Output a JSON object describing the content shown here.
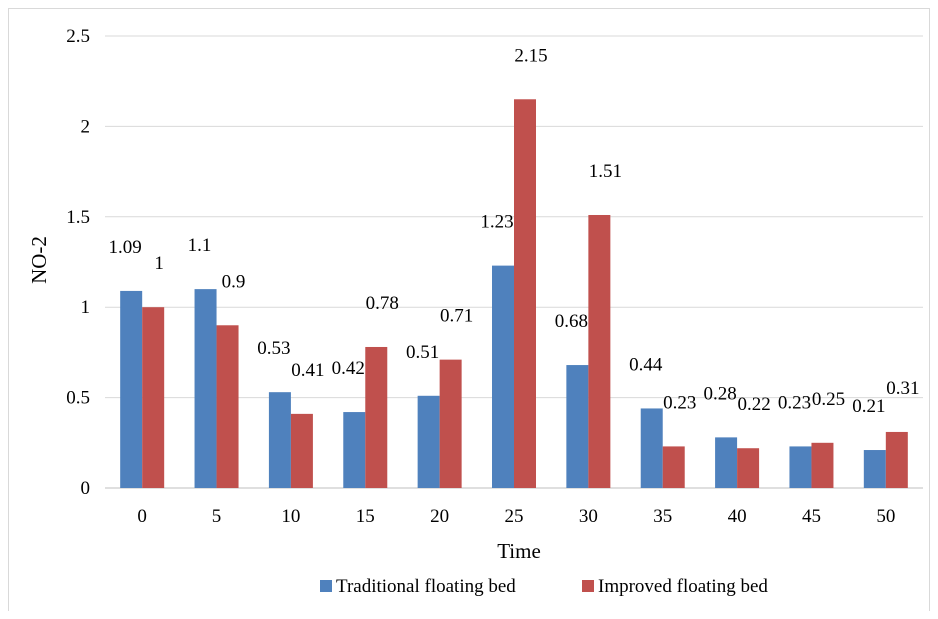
{
  "chart_data": {
    "type": "bar",
    "title": "",
    "xlabel": "Time",
    "ylabel": "NO-2",
    "ylim": [
      0,
      2.5
    ],
    "yticks": [
      "0",
      "0.5",
      "1",
      "1.5",
      "2",
      "2.5"
    ],
    "categories": [
      "0",
      "5",
      "10",
      "15",
      "20",
      "25",
      "30",
      "35",
      "40",
      "45",
      "50"
    ],
    "series": [
      {
        "name": "Traditional floating bed",
        "color": "#4f81bd",
        "values": [
          1.09,
          1.1,
          0.53,
          0.42,
          0.51,
          1.23,
          0.68,
          0.44,
          0.28,
          0.23,
          0.21
        ],
        "labels": [
          "1.09",
          "1.1",
          "0.53",
          "0.42",
          "0.51",
          "1.23",
          "0.68",
          "0.44",
          "0.28",
          "0.23",
          "0.21"
        ]
      },
      {
        "name": "Improved floating bed",
        "color": "#c0504d",
        "values": [
          1,
          0.9,
          0.41,
          0.78,
          0.71,
          2.15,
          1.51,
          0.23,
          0.22,
          0.25,
          0.31
        ],
        "labels": [
          "1",
          "0.9",
          "0.41",
          "0.78",
          "0.71",
          "2.15",
          "1.51",
          "0.23",
          "0.22",
          "0.25",
          "0.31"
        ]
      }
    ],
    "grid": true,
    "legend_position": "bottom"
  }
}
